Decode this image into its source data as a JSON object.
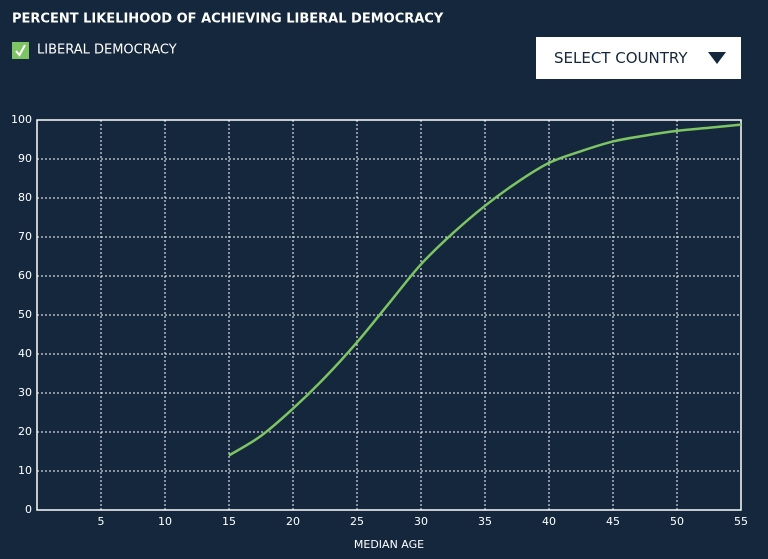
{
  "chart_data": {
    "type": "line",
    "title": "PERCENT LIKELIHOOD OF ACHIEVING LIBERAL DEMOCRACY",
    "x_label": "MEDIAN AGE",
    "x": [
      15,
      17.5,
      20,
      22.5,
      25,
      27.5,
      30,
      32.5,
      35,
      37.5,
      40,
      42.5,
      45,
      47.5,
      50,
      52.5,
      55
    ],
    "series": [
      {
        "name": "LIBERAL DEMOCRACY",
        "color": "#7dc462",
        "values": [
          14,
          19,
          26,
          34,
          43,
          53,
          63,
          71,
          78,
          84,
          89,
          92,
          94.5,
          96,
          97.2,
          98,
          98.8
        ]
      }
    ],
    "xlim": [
      0,
      55
    ],
    "xticks": [
      5,
      10,
      15,
      20,
      25,
      30,
      35,
      40,
      45,
      50,
      55
    ],
    "ylim": [
      0,
      100
    ],
    "yticks": [
      0,
      10,
      20,
      30,
      40,
      50,
      60,
      70,
      80,
      90,
      100
    ],
    "grid": true
  },
  "controls": {
    "select_label": "SELECT COUNTRY"
  }
}
